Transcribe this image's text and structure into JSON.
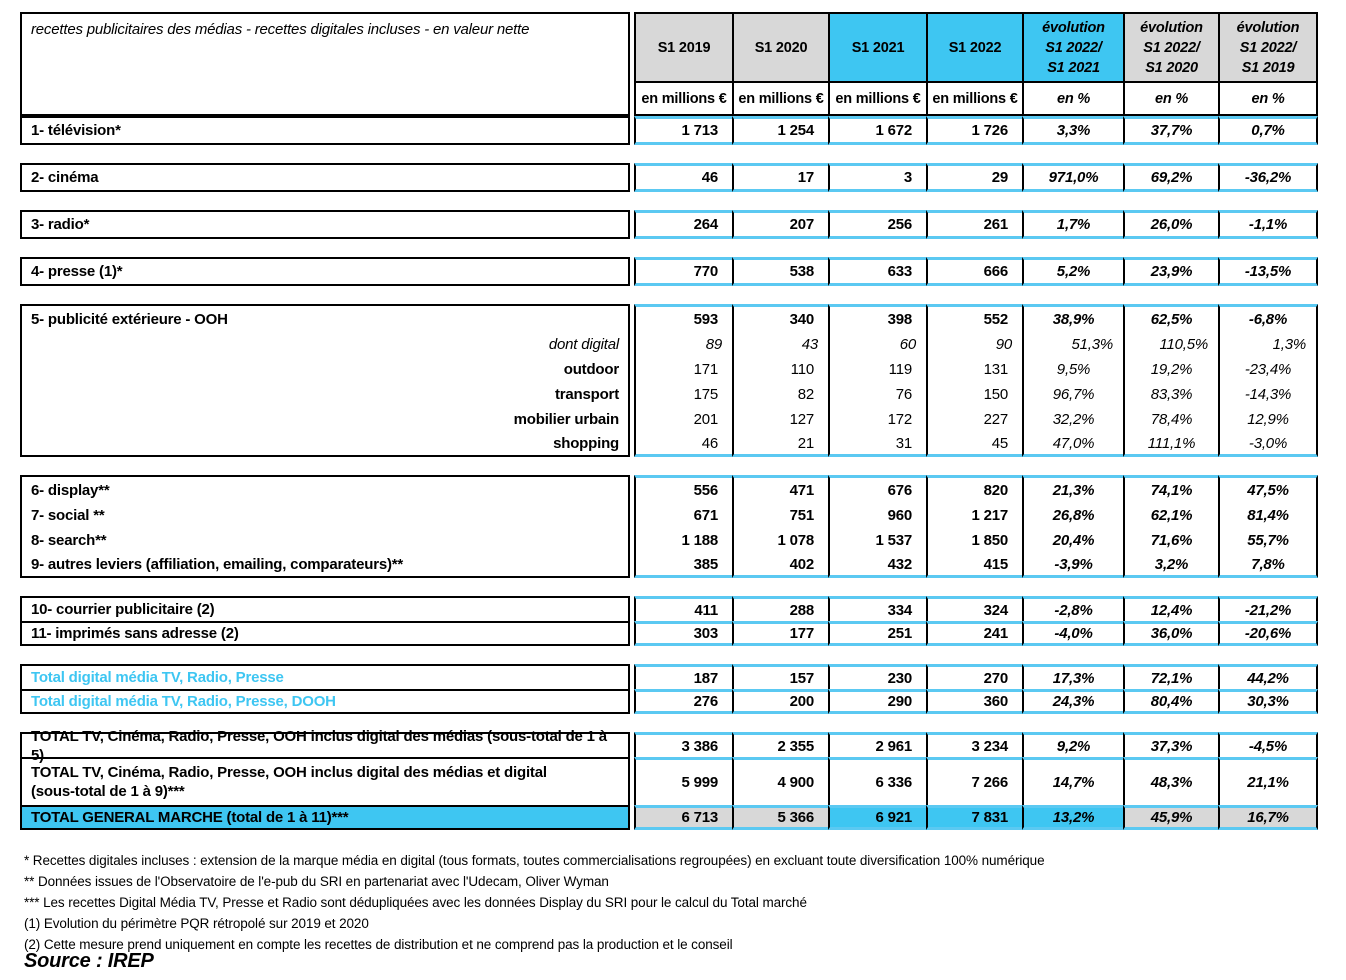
{
  "table": {
    "title": "recettes publicitaires des médias - recettes digitales incluses - en valeur nette",
    "columns": [
      {
        "label": "S1 2019",
        "unit": "en millions €",
        "bg": "gray",
        "italic": false
      },
      {
        "label": "S1 2020",
        "unit": "en millions €",
        "bg": "gray",
        "italic": false
      },
      {
        "label": "S1 2021",
        "unit": "en millions €",
        "bg": "blue",
        "italic": false
      },
      {
        "label": "S1 2022",
        "unit": "en millions €",
        "bg": "blue",
        "italic": false
      },
      {
        "label": "évolution\nS1 2022/\nS1 2021",
        "unit": "en %",
        "bg": "blue",
        "italic": true
      },
      {
        "label": "évolution\nS1 2022/\nS1 2020",
        "unit": "en %",
        "bg": "gray",
        "italic": true
      },
      {
        "label": "évolution\nS1 2022/\nS1 2019",
        "unit": "en %",
        "bg": "gray",
        "italic": true
      }
    ],
    "blocks": [
      {
        "type": "single",
        "attached": true,
        "rows": [
          {
            "style": "main",
            "label": "1- télévision*",
            "values": [
              "1 713",
              "1 254",
              "1 672",
              "1 726",
              "3,3%",
              "37,7%",
              "0,7%"
            ]
          }
        ]
      },
      {
        "type": "single",
        "rows": [
          {
            "style": "main",
            "label": "2- cinéma",
            "values": [
              "46",
              "17",
              "3",
              "29",
              "971,0%",
              "69,2%",
              "-36,2%"
            ]
          }
        ]
      },
      {
        "type": "single",
        "rows": [
          {
            "style": "main",
            "label": "3- radio*",
            "values": [
              "264",
              "207",
              "256",
              "261",
              "1,7%",
              "26,0%",
              "-1,1%"
            ]
          }
        ]
      },
      {
        "type": "single",
        "rows": [
          {
            "style": "main",
            "label": "4- presse (1)*",
            "values": [
              "770",
              "538",
              "633",
              "666",
              "5,2%",
              "23,9%",
              "-13,5%"
            ]
          }
        ]
      },
      {
        "type": "group-nolines",
        "rows": [
          {
            "style": "main",
            "label": "5- publicité extérieure - OOH",
            "values": [
              "593",
              "340",
              "398",
              "552",
              "38,9%",
              "62,5%",
              "-6,8%"
            ]
          },
          {
            "style": "sub-italic",
            "label": "dont digital",
            "values": [
              "89",
              "43",
              "60",
              "90",
              "51,3%",
              "110,5%",
              "1,3%"
            ]
          },
          {
            "style": "sub",
            "label": "outdoor",
            "values": [
              "171",
              "110",
              "119",
              "131",
              "9,5%",
              "19,2%",
              "-23,4%"
            ]
          },
          {
            "style": "sub",
            "label": "transport",
            "values": [
              "175",
              "82",
              "76",
              "150",
              "96,7%",
              "83,3%",
              "-14,3%"
            ]
          },
          {
            "style": "sub",
            "label": "mobilier urbain",
            "values": [
              "201",
              "127",
              "172",
              "227",
              "32,2%",
              "78,4%",
              "12,9%"
            ]
          },
          {
            "style": "sub",
            "label": "shopping",
            "values": [
              "46",
              "21",
              "31",
              "45",
              "47,0%",
              "111,1%",
              "-3,0%"
            ]
          }
        ]
      },
      {
        "type": "group-nolines",
        "rows": [
          {
            "style": "main",
            "label": "6- display**",
            "values": [
              "556",
              "471",
              "676",
              "820",
              "21,3%",
              "74,1%",
              "47,5%"
            ]
          },
          {
            "style": "main",
            "label": "7- social **",
            "values": [
              "671",
              "751",
              "960",
              "1 217",
              "26,8%",
              "62,1%",
              "81,4%"
            ]
          },
          {
            "style": "main",
            "label": "8- search**",
            "values": [
              "1 188",
              "1 078",
              "1 537",
              "1 850",
              "20,4%",
              "71,6%",
              "55,7%"
            ]
          },
          {
            "style": "main",
            "label": "9- autres leviers (affiliation, emailing, comparateurs)**",
            "values": [
              "385",
              "402",
              "432",
              "415",
              "-3,9%",
              "3,2%",
              "7,8%"
            ]
          }
        ]
      },
      {
        "type": "group-lines",
        "rows": [
          {
            "style": "main",
            "label": "10- courrier publicitaire (2)",
            "values": [
              "411",
              "288",
              "334",
              "324",
              "-2,8%",
              "12,4%",
              "-21,2%"
            ]
          },
          {
            "style": "main",
            "label": "11- imprimés sans adresse (2)",
            "values": [
              "303",
              "177",
              "251",
              "241",
              "-4,0%",
              "36,0%",
              "-20,6%"
            ]
          }
        ]
      },
      {
        "type": "group-lines",
        "rows": [
          {
            "style": "blue-label",
            "label": "Total digital média TV, Radio, Presse",
            "values": [
              "187",
              "157",
              "230",
              "270",
              "17,3%",
              "72,1%",
              "44,2%"
            ]
          },
          {
            "style": "blue-label",
            "label": "Total digital média TV, Radio, Presse, DOOH",
            "values": [
              "276",
              "200",
              "290",
              "360",
              "24,3%",
              "80,4%",
              "30,3%"
            ]
          }
        ]
      },
      {
        "type": "group-lines",
        "rows": [
          {
            "style": "main",
            "label": "TOTAL TV, Cinéma, Radio, Presse, OOH inclus digital des médias (sous-total de 1 à 5)",
            "values": [
              "3 386",
              "2 355",
              "2 961",
              "3 234",
              "9,2%",
              "37,3%",
              "-4,5%"
            ]
          },
          {
            "style": "main-tall",
            "label": "TOTAL TV, Cinéma, Radio, Presse, OOH inclus digital des médias et digital\n(sous-total de 1 à 9)***",
            "values": [
              "5 999",
              "4 900",
              "6 336",
              "7 266",
              "14,7%",
              "48,3%",
              "21,1%"
            ]
          },
          {
            "style": "total-highlight",
            "label": "TOTAL GENERAL MARCHE (total de 1 à 11)***",
            "values": [
              "6 713",
              "5 366",
              "6 921",
              "7 831",
              "13,2%",
              "45,9%",
              "16,7%"
            ]
          }
        ]
      }
    ]
  },
  "footnotes": [
    "* Recettes digitales incluses :  extension de la marque média en digital (tous formats, toutes commercialisations regroupées) en excluant toute diversification 100% numérique",
    "** Données issues de l'Observatoire de l'e-pub du SRI en partenariat avec l'Udecam, Oliver Wyman",
    "*** Les recettes Digital Média TV, Presse et Radio sont dédupliquées avec les données Display du SRI pour le calcul du Total marché",
    "(1) Evolution du périmètre PQR rétropolé sur 2019 et 2020",
    "(2) Cette mesure prend uniquement en compte les recettes de distribution et ne comprend pas la production et le conseil"
  ],
  "source": "Source : IREP",
  "colors": {
    "highlight_blue": "#3EC6F2",
    "header_gray": "#D8D8D8",
    "value_border_cyan": "#5BC9F2"
  }
}
